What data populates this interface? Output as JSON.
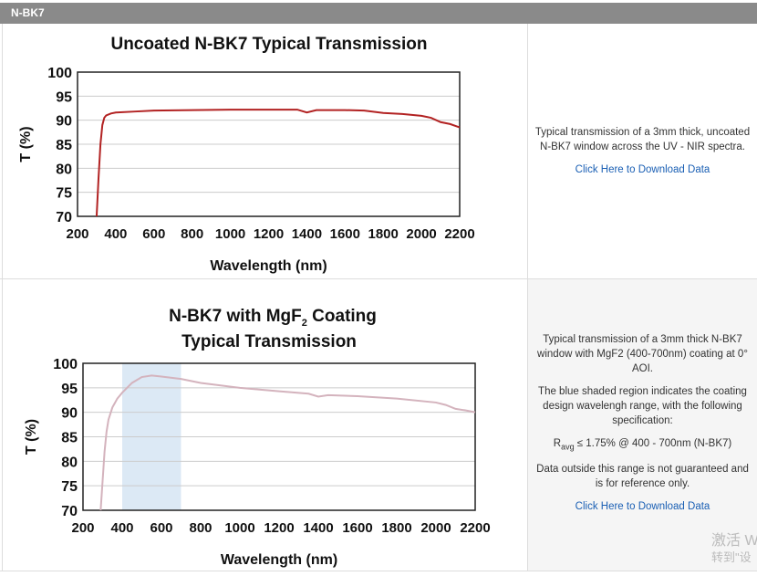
{
  "header": {
    "title": "N-BK7"
  },
  "chart_data": [
    {
      "type": "line",
      "title": "Uncoated N-BK7 Typical Transmission",
      "xlabel": "Wavelength (nm)",
      "ylabel": "T (%)",
      "xlim": [
        200,
        2200
      ],
      "ylim": [
        70,
        100
      ],
      "xticks": [
        200,
        400,
        600,
        800,
        1000,
        1200,
        1400,
        1600,
        1800,
        2000,
        2200
      ],
      "yticks": [
        70,
        75,
        80,
        85,
        90,
        95,
        100
      ],
      "color": "#b22222",
      "grid": true,
      "x": [
        300,
        310,
        320,
        330,
        340,
        350,
        375,
        400,
        500,
        600,
        800,
        1000,
        1200,
        1350,
        1400,
        1450,
        1600,
        1700,
        1800,
        1900,
        2000,
        2050,
        2100,
        2150,
        2200
      ],
      "y": [
        70,
        78,
        85,
        89,
        90.5,
        91,
        91.4,
        91.6,
        91.8,
        92,
        92.1,
        92.2,
        92.2,
        92.2,
        91.6,
        92.1,
        92.1,
        92,
        91.5,
        91.3,
        90.9,
        90.5,
        89.6,
        89.2,
        88.5
      ]
    },
    {
      "type": "line",
      "title": "N-BK7 with MgF2 Coating Typical Transmission",
      "xlabel": "Wavelength (nm)",
      "ylabel": "T (%)",
      "xlim": [
        200,
        2200
      ],
      "ylim": [
        70,
        100
      ],
      "xticks": [
        200,
        400,
        600,
        800,
        1000,
        1200,
        1400,
        1600,
        1800,
        2000,
        2200
      ],
      "yticks": [
        70,
        75,
        80,
        85,
        90,
        95,
        100
      ],
      "color": "#d4b3bd",
      "shade": [
        400,
        700
      ],
      "shade_color": "#dce9f5",
      "grid": true,
      "x": [
        290,
        300,
        310,
        320,
        330,
        350,
        375,
        400,
        450,
        500,
        550,
        600,
        700,
        800,
        1000,
        1200,
        1350,
        1400,
        1450,
        1600,
        1800,
        2000,
        2050,
        2100,
        2150,
        2200
      ],
      "y": [
        70,
        76,
        82,
        86,
        88.5,
        91,
        92.8,
        94,
        96,
        97.2,
        97.5,
        97.3,
        96.8,
        96,
        95,
        94.3,
        93.8,
        93.2,
        93.5,
        93.3,
        92.8,
        92,
        91.5,
        90.7,
        90.4,
        90
      ]
    }
  ],
  "chart2_title": {
    "line1a": "N-BK7 with MgF",
    "line1sub": "2",
    "line1b": " Coating",
    "line2": "Typical Transmission"
  },
  "panel1": {
    "desc": "Typical transmission of a 3mm thick, uncoated N-BK7 window across the UV - NIR spectra.",
    "link": "Click Here to Download Data"
  },
  "panel2": {
    "desc": "Typical transmission of a 3mm thick N-BK7 window with MgF2 (400-700nm) coating at 0° AOI.",
    "desc2": "The blue shaded region indicates the coating design wavelengh range, with the following specification:",
    "spec_r": "R",
    "spec_sub": "avg",
    "spec_rest": " ≤ 1.75% @ 400 - 700nm (N-BK7)",
    "desc3": "Data outside this range is not guaranteed and is for reference only.",
    "link": "Click Here to Download Data"
  },
  "watermark": {
    "line1": "激活 W",
    "line2": "转到\"设"
  }
}
